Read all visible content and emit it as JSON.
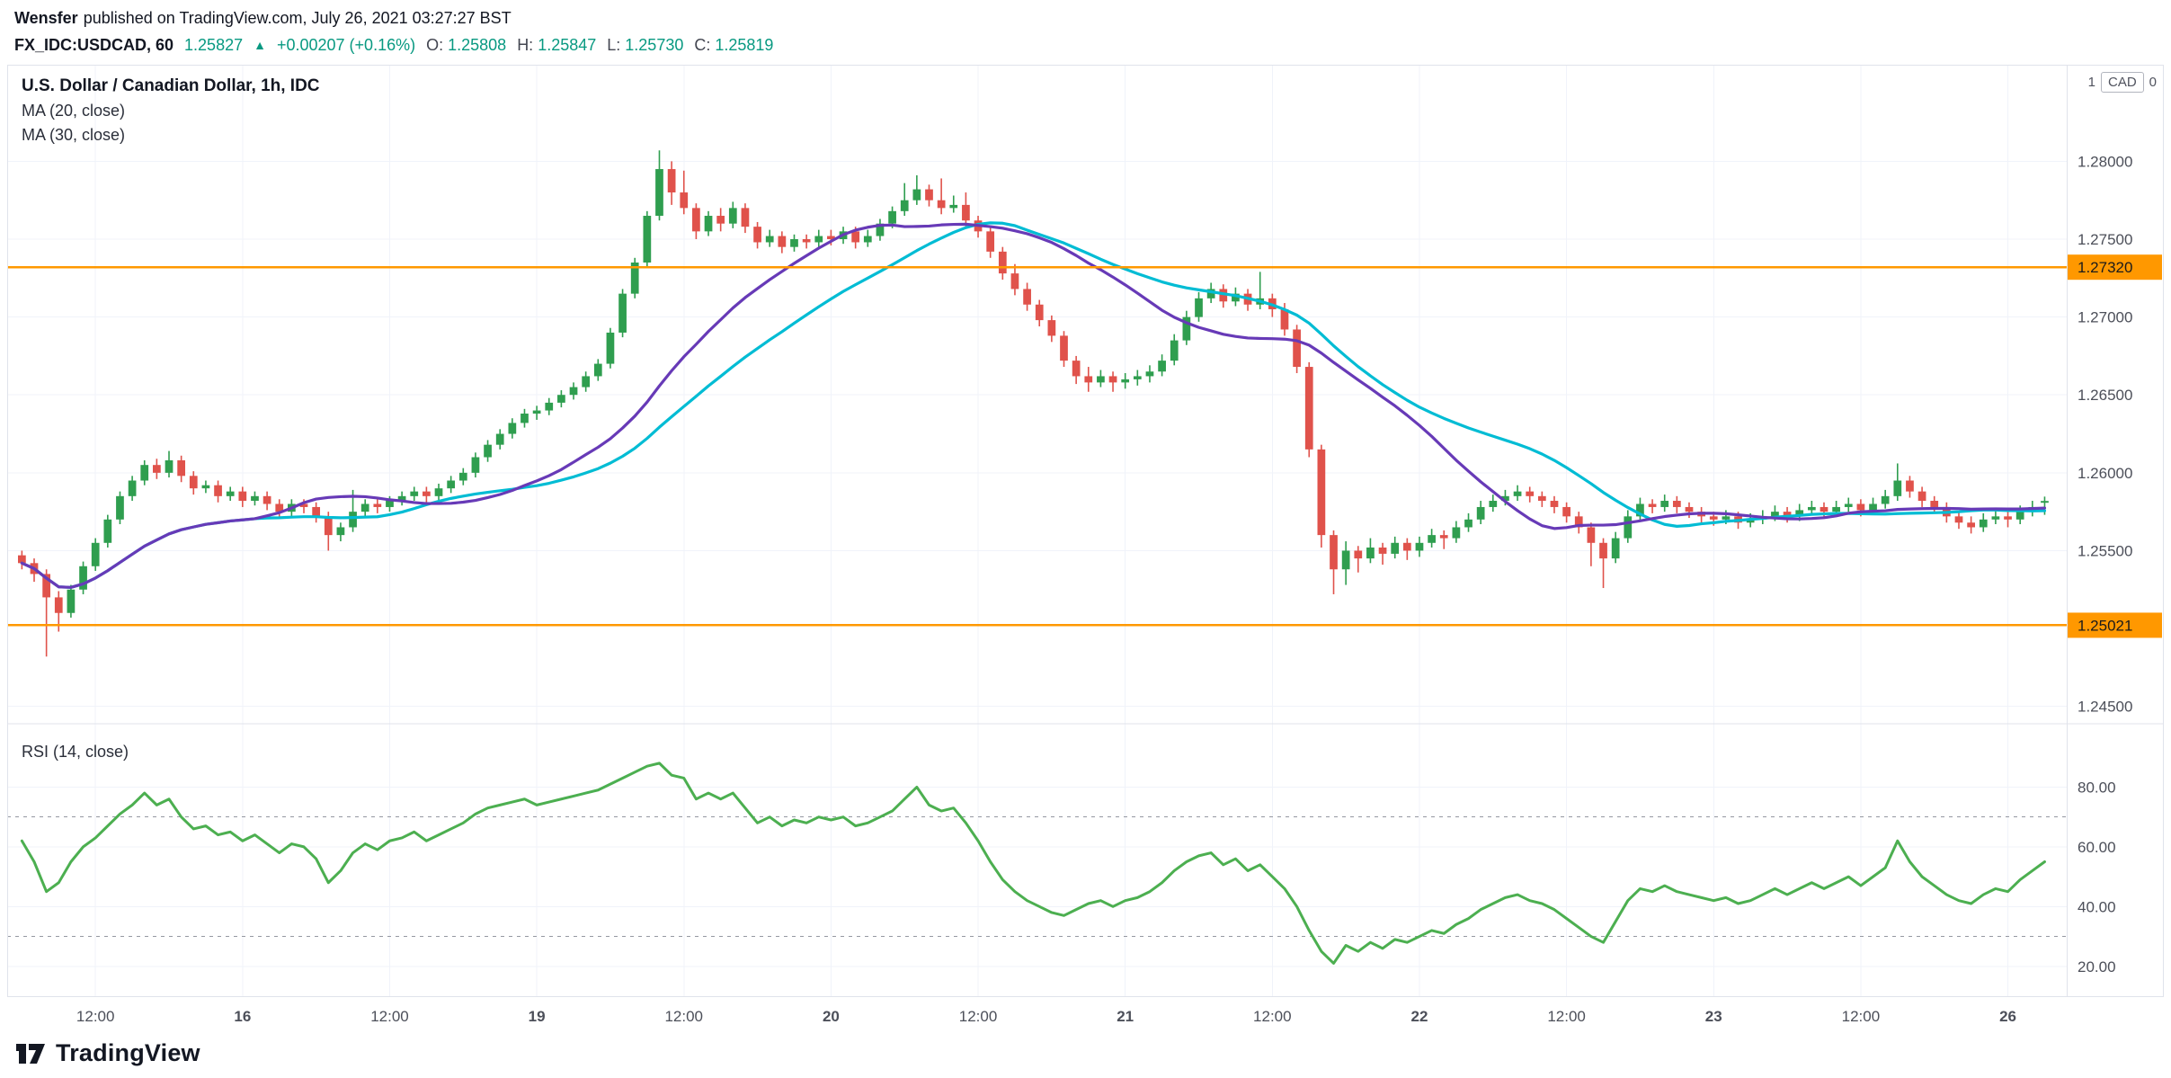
{
  "header": {
    "author": "Wensfer",
    "publish_info": "published on TradingView.com, July 26, 2021 03:27:27 BST",
    "symbol": "FX_IDC:USDCAD, 60",
    "price": "1.25827",
    "arrow": "▲",
    "change": "+0.00207 (+0.16%)",
    "o_label": "O:",
    "o": "1.25808",
    "h_label": "H:",
    "h": "1.25847",
    "l_label": "L:",
    "l": "1.25730",
    "c_label": "C:",
    "c": "1.25819"
  },
  "legend": {
    "symbol_title": "U.S. Dollar / Canadian Dollar, 1h, IDC",
    "ma20": "MA (20, close)",
    "ma30": "MA (30, close)",
    "rsi": "RSI (14, close)"
  },
  "scale": {
    "unit_prefix": "1",
    "unit": "CAD",
    "unit_suffix": "0"
  },
  "footer": {
    "brand": "TradingView"
  },
  "chart_data": {
    "type": "candlestick",
    "title": "U.S. Dollar / Canadian Dollar, 1h, IDC",
    "symbol": "FX_IDC:USDCAD",
    "interval": "60",
    "up_color": "#2f9e4f",
    "down_color": "#e0524b",
    "rsi_color": "#4caf50",
    "grid_color": "#f0f3fa",
    "border_color": "#e0e3eb",
    "axis_text_color": "#4c4f59",
    "price_ylim": [
      1.244,
      1.2862
    ],
    "price_ticks": [
      1.28,
      1.275,
      1.27,
      1.265,
      1.26,
      1.255,
      1.245
    ],
    "price_tick_labels": [
      "1.28000",
      "1.27500",
      "1.27000",
      "1.26500",
      "1.26000",
      "1.25500",
      "1.24500"
    ],
    "rsi_ylim": [
      10,
      100
    ],
    "rsi_ticks": [
      80,
      60,
      40,
      20
    ],
    "rsi_tick_labels": [
      "80.00",
      "60.00",
      "40.00",
      "20.00"
    ],
    "rsi_bands": [
      70,
      30
    ],
    "hlines": [
      {
        "value": 1.2732,
        "label": "1.27320",
        "color": "#ff9800"
      },
      {
        "value": 1.25021,
        "label": "1.25021",
        "color": "#ff9800"
      }
    ],
    "ma": [
      {
        "label": "MA (20, close)",
        "period": 20,
        "color": "#673ab7"
      },
      {
        "label": "MA (30, close)",
        "period": 30,
        "color": "#00bcd4"
      }
    ],
    "x_labels": [
      {
        "index": 6,
        "label": "12:00",
        "major": false
      },
      {
        "index": 18,
        "label": "16",
        "major": true
      },
      {
        "index": 30,
        "label": "12:00",
        "major": false
      },
      {
        "index": 42,
        "label": "19",
        "major": true
      },
      {
        "index": 54,
        "label": "12:00",
        "major": false
      },
      {
        "index": 66,
        "label": "20",
        "major": true
      },
      {
        "index": 78,
        "label": "12:00",
        "major": false
      },
      {
        "index": 90,
        "label": "21",
        "major": true
      },
      {
        "index": 102,
        "label": "12:00",
        "major": false
      },
      {
        "index": 114,
        "label": "22",
        "major": true
      },
      {
        "index": 126,
        "label": "12:00",
        "major": false
      },
      {
        "index": 138,
        "label": "23",
        "major": true
      },
      {
        "index": 150,
        "label": "12:00",
        "major": false
      },
      {
        "index": 162,
        "label": "26",
        "major": true
      }
    ],
    "candles": [
      [
        1.2547,
        1.255,
        1.2538,
        1.2542
      ],
      [
        1.2542,
        1.2545,
        1.253,
        1.2535
      ],
      [
        1.2535,
        1.2538,
        1.2482,
        1.252
      ],
      [
        1.252,
        1.2524,
        1.2498,
        1.251
      ],
      [
        1.251,
        1.2528,
        1.2507,
        1.2525
      ],
      [
        1.2525,
        1.2543,
        1.2522,
        1.254
      ],
      [
        1.254,
        1.2558,
        1.2537,
        1.2555
      ],
      [
        1.2555,
        1.2573,
        1.2552,
        1.257
      ],
      [
        1.257,
        1.2588,
        1.2567,
        1.2585
      ],
      [
        1.2585,
        1.2598,
        1.2582,
        1.2595
      ],
      [
        1.2595,
        1.2608,
        1.2592,
        1.2605
      ],
      [
        1.2605,
        1.2609,
        1.2596,
        1.26
      ],
      [
        1.26,
        1.2614,
        1.2597,
        1.2608
      ],
      [
        1.2608,
        1.2611,
        1.2594,
        1.2598
      ],
      [
        1.2598,
        1.2601,
        1.2586,
        1.259
      ],
      [
        1.259,
        1.2595,
        1.2587,
        1.2592
      ],
      [
        1.2592,
        1.2595,
        1.2581,
        1.2585
      ],
      [
        1.2585,
        1.2591,
        1.2582,
        1.2588
      ],
      [
        1.2588,
        1.2591,
        1.2578,
        1.2582
      ],
      [
        1.2582,
        1.2588,
        1.2579,
        1.2585
      ],
      [
        1.2585,
        1.2588,
        1.2576,
        1.258
      ],
      [
        1.258,
        1.2583,
        1.2571,
        1.2575
      ],
      [
        1.2575,
        1.2583,
        1.2572,
        1.258
      ],
      [
        1.258,
        1.2583,
        1.2574,
        1.2578
      ],
      [
        1.2578,
        1.2581,
        1.2568,
        1.2572
      ],
      [
        1.2572,
        1.2575,
        1.255,
        1.256
      ],
      [
        1.256,
        1.2568,
        1.2556,
        1.2565
      ],
      [
        1.2565,
        1.2589,
        1.2562,
        1.2575
      ],
      [
        1.2575,
        1.2583,
        1.2572,
        1.258
      ],
      [
        1.258,
        1.2583,
        1.2574,
        1.2578
      ],
      [
        1.2578,
        1.2585,
        1.2575,
        1.2582
      ],
      [
        1.2582,
        1.2588,
        1.2579,
        1.2585
      ],
      [
        1.2585,
        1.2591,
        1.2582,
        1.2588
      ],
      [
        1.2588,
        1.2591,
        1.2581,
        1.2585
      ],
      [
        1.2585,
        1.2593,
        1.2582,
        1.259
      ],
      [
        1.259,
        1.2598,
        1.2587,
        1.2595
      ],
      [
        1.2595,
        1.2603,
        1.2592,
        1.26
      ],
      [
        1.26,
        1.2613,
        1.2597,
        1.261
      ],
      [
        1.261,
        1.2621,
        1.2607,
        1.2618
      ],
      [
        1.2618,
        1.2628,
        1.2615,
        1.2625
      ],
      [
        1.2625,
        1.2635,
        1.2622,
        1.2632
      ],
      [
        1.2632,
        1.2641,
        1.2629,
        1.2638
      ],
      [
        1.2638,
        1.2643,
        1.2634,
        1.264
      ],
      [
        1.264,
        1.2648,
        1.2637,
        1.2645
      ],
      [
        1.2645,
        1.2653,
        1.2642,
        1.265
      ],
      [
        1.265,
        1.2658,
        1.2647,
        1.2655
      ],
      [
        1.2655,
        1.2665,
        1.2652,
        1.2662
      ],
      [
        1.2662,
        1.2673,
        1.2659,
        1.267
      ],
      [
        1.267,
        1.2693,
        1.2667,
        1.269
      ],
      [
        1.269,
        1.2718,
        1.2687,
        1.2715
      ],
      [
        1.2715,
        1.2738,
        1.2712,
        1.2735
      ],
      [
        1.2735,
        1.2768,
        1.2732,
        1.2765
      ],
      [
        1.2765,
        1.2807,
        1.2762,
        1.2795
      ],
      [
        1.2795,
        1.28,
        1.2772,
        1.278
      ],
      [
        1.278,
        1.2794,
        1.2766,
        1.277
      ],
      [
        1.277,
        1.2773,
        1.275,
        1.2755
      ],
      [
        1.2755,
        1.2768,
        1.2752,
        1.2765
      ],
      [
        1.2765,
        1.277,
        1.2755,
        1.276
      ],
      [
        1.276,
        1.2774,
        1.2757,
        1.277
      ],
      [
        1.277,
        1.2773,
        1.2754,
        1.2758
      ],
      [
        1.2758,
        1.2761,
        1.2744,
        1.2748
      ],
      [
        1.2748,
        1.2756,
        1.2745,
        1.2752
      ],
      [
        1.2752,
        1.2755,
        1.2741,
        1.2745
      ],
      [
        1.2745,
        1.2753,
        1.2742,
        1.275
      ],
      [
        1.275,
        1.2753,
        1.2744,
        1.2748
      ],
      [
        1.2748,
        1.2756,
        1.2745,
        1.2752
      ],
      [
        1.2752,
        1.2756,
        1.2746,
        1.275
      ],
      [
        1.275,
        1.2758,
        1.2747,
        1.2755
      ],
      [
        1.2755,
        1.2758,
        1.2744,
        1.2748
      ],
      [
        1.2748,
        1.2756,
        1.2745,
        1.2752
      ],
      [
        1.2752,
        1.2763,
        1.2749,
        1.276
      ],
      [
        1.276,
        1.2771,
        1.2757,
        1.2768
      ],
      [
        1.2768,
        1.2786,
        1.2765,
        1.2775
      ],
      [
        1.2775,
        1.2791,
        1.2772,
        1.2782
      ],
      [
        1.2782,
        1.2785,
        1.2771,
        1.2775
      ],
      [
        1.2775,
        1.2789,
        1.2766,
        1.277
      ],
      [
        1.277,
        1.2778,
        1.2767,
        1.2772
      ],
      [
        1.2772,
        1.278,
        1.2758,
        1.2762
      ],
      [
        1.2762,
        1.2765,
        1.2751,
        1.2755
      ],
      [
        1.2755,
        1.2758,
        1.2738,
        1.2742
      ],
      [
        1.2742,
        1.2745,
        1.2724,
        1.2728
      ],
      [
        1.2728,
        1.2734,
        1.2714,
        1.2718
      ],
      [
        1.2718,
        1.2722,
        1.2704,
        1.2708
      ],
      [
        1.2708,
        1.2711,
        1.2694,
        1.2698
      ],
      [
        1.2698,
        1.2701,
        1.2684,
        1.2688
      ],
      [
        1.2688,
        1.2691,
        1.2668,
        1.2672
      ],
      [
        1.2672,
        1.2675,
        1.2657,
        1.2662
      ],
      [
        1.2662,
        1.2668,
        1.2652,
        1.2658
      ],
      [
        1.2658,
        1.2666,
        1.2655,
        1.2662
      ],
      [
        1.2662,
        1.2665,
        1.2652,
        1.2658
      ],
      [
        1.2658,
        1.2664,
        1.2654,
        1.266
      ],
      [
        1.266,
        1.2666,
        1.2656,
        1.2662
      ],
      [
        1.2662,
        1.2669,
        1.2658,
        1.2665
      ],
      [
        1.2665,
        1.2676,
        1.2662,
        1.2672
      ],
      [
        1.2672,
        1.2689,
        1.2669,
        1.2685
      ],
      [
        1.2685,
        1.2704,
        1.2682,
        1.27
      ],
      [
        1.27,
        1.2716,
        1.2697,
        1.2712
      ],
      [
        1.2712,
        1.2722,
        1.2709,
        1.2718
      ],
      [
        1.2718,
        1.2721,
        1.2706,
        1.271
      ],
      [
        1.271,
        1.2719,
        1.2707,
        1.2715
      ],
      [
        1.2715,
        1.2718,
        1.2704,
        1.2708
      ],
      [
        1.2708,
        1.2729,
        1.2705,
        1.2712
      ],
      [
        1.2712,
        1.2715,
        1.27,
        1.2705
      ],
      [
        1.2705,
        1.2709,
        1.2688,
        1.2692
      ],
      [
        1.2692,
        1.2695,
        1.2664,
        1.2668
      ],
      [
        1.2668,
        1.2671,
        1.261,
        1.2615
      ],
      [
        1.2615,
        1.2618,
        1.2552,
        1.256
      ],
      [
        1.256,
        1.2563,
        1.2522,
        1.2538
      ],
      [
        1.2538,
        1.2556,
        1.2528,
        1.255
      ],
      [
        1.255,
        1.2553,
        1.2536,
        1.2545
      ],
      [
        1.2545,
        1.2558,
        1.2542,
        1.2552
      ],
      [
        1.2552,
        1.2555,
        1.2541,
        1.2548
      ],
      [
        1.2548,
        1.2559,
        1.2545,
        1.2555
      ],
      [
        1.2555,
        1.2558,
        1.2544,
        1.255
      ],
      [
        1.255,
        1.2559,
        1.2546,
        1.2555
      ],
      [
        1.2555,
        1.2564,
        1.2552,
        1.256
      ],
      [
        1.256,
        1.2563,
        1.2551,
        1.2558
      ],
      [
        1.2558,
        1.2569,
        1.2555,
        1.2565
      ],
      [
        1.2565,
        1.2574,
        1.2562,
        1.257
      ],
      [
        1.257,
        1.2582,
        1.2567,
        1.2578
      ],
      [
        1.2578,
        1.2586,
        1.2575,
        1.2582
      ],
      [
        1.2582,
        1.2589,
        1.2579,
        1.2585
      ],
      [
        1.2585,
        1.2592,
        1.2582,
        1.2588
      ],
      [
        1.2588,
        1.2591,
        1.2581,
        1.2585
      ],
      [
        1.2585,
        1.2588,
        1.2578,
        1.2582
      ],
      [
        1.2582,
        1.2585,
        1.2574,
        1.2578
      ],
      [
        1.2578,
        1.2581,
        1.2568,
        1.2572
      ],
      [
        1.2572,
        1.2575,
        1.2561,
        1.2565
      ],
      [
        1.2565,
        1.2568,
        1.254,
        1.2555
      ],
      [
        1.2555,
        1.2558,
        1.2526,
        1.2545
      ],
      [
        1.2545,
        1.2562,
        1.2542,
        1.2558
      ],
      [
        1.2558,
        1.2576,
        1.2555,
        1.2572
      ],
      [
        1.2572,
        1.2584,
        1.2569,
        1.258
      ],
      [
        1.258,
        1.2583,
        1.2574,
        1.2578
      ],
      [
        1.2578,
        1.2586,
        1.2575,
        1.2582
      ],
      [
        1.2582,
        1.2585,
        1.2574,
        1.2578
      ],
      [
        1.2578,
        1.2581,
        1.2571,
        1.2575
      ],
      [
        1.2575,
        1.2578,
        1.2568,
        1.2572
      ],
      [
        1.2572,
        1.2575,
        1.2566,
        1.257
      ],
      [
        1.257,
        1.2576,
        1.2567,
        1.2572
      ],
      [
        1.2572,
        1.2575,
        1.2564,
        1.2568
      ],
      [
        1.2568,
        1.2574,
        1.2565,
        1.257
      ],
      [
        1.257,
        1.2576,
        1.2567,
        1.2572
      ],
      [
        1.2572,
        1.2579,
        1.2569,
        1.2575
      ],
      [
        1.2575,
        1.2578,
        1.2568,
        1.2572
      ],
      [
        1.2572,
        1.258,
        1.2569,
        1.2576
      ],
      [
        1.2576,
        1.2582,
        1.2573,
        1.2578
      ],
      [
        1.2578,
        1.2581,
        1.2571,
        1.2575
      ],
      [
        1.2575,
        1.2582,
        1.2572,
        1.2578
      ],
      [
        1.2578,
        1.2584,
        1.2575,
        1.258
      ],
      [
        1.258,
        1.2583,
        1.2572,
        1.2576
      ],
      [
        1.2576,
        1.2584,
        1.2573,
        1.258
      ],
      [
        1.258,
        1.2589,
        1.2577,
        1.2585
      ],
      [
        1.2585,
        1.2606,
        1.2582,
        1.2595
      ],
      [
        1.2595,
        1.2598,
        1.2584,
        1.2588
      ],
      [
        1.2588,
        1.2591,
        1.2578,
        1.2582
      ],
      [
        1.2582,
        1.2585,
        1.2574,
        1.2578
      ],
      [
        1.2578,
        1.2581,
        1.2568,
        1.2572
      ],
      [
        1.2572,
        1.2575,
        1.2564,
        1.2568
      ],
      [
        1.2568,
        1.2572,
        1.2561,
        1.2565
      ],
      [
        1.2565,
        1.2574,
        1.2562,
        1.257
      ],
      [
        1.257,
        1.2576,
        1.2567,
        1.2572
      ],
      [
        1.2572,
        1.2575,
        1.2565,
        1.257
      ],
      [
        1.257,
        1.2579,
        1.2567,
        1.2575
      ],
      [
        1.2575,
        1.2582,
        1.2572,
        1.2578
      ],
      [
        1.25808,
        1.25847,
        1.2573,
        1.25819
      ]
    ],
    "rsi_values": [
      62,
      55,
      45,
      48,
      55,
      60,
      63,
      67,
      71,
      74,
      78,
      74,
      76,
      70,
      66,
      67,
      64,
      65,
      62,
      64,
      61,
      58,
      61,
      60,
      56,
      48,
      52,
      58,
      61,
      59,
      62,
      63,
      65,
      62,
      64,
      66,
      68,
      71,
      73,
      74,
      75,
      76,
      74,
      75,
      76,
      77,
      78,
      79,
      81,
      83,
      85,
      87,
      88,
      84,
      83,
      76,
      78,
      76,
      78,
      73,
      68,
      70,
      67,
      69,
      68,
      70,
      69,
      70,
      67,
      68,
      70,
      72,
      76,
      80,
      74,
      72,
      73,
      68,
      62,
      55,
      49,
      45,
      42,
      40,
      38,
      37,
      39,
      41,
      42,
      40,
      42,
      43,
      45,
      48,
      52,
      55,
      57,
      58,
      54,
      56,
      52,
      54,
      50,
      46,
      40,
      32,
      25,
      21,
      27,
      25,
      28,
      26,
      29,
      28,
      30,
      32,
      31,
      34,
      36,
      39,
      41,
      43,
      44,
      42,
      41,
      39,
      36,
      33,
      30,
      28,
      35,
      42,
      46,
      45,
      47,
      45,
      44,
      43,
      42,
      43,
      41,
      42,
      44,
      46,
      44,
      46,
      48,
      46,
      48,
      50,
      47,
      50,
      53,
      62,
      55,
      50,
      47,
      44,
      42,
      41,
      44,
      46,
      45,
      49,
      52,
      55
    ]
  }
}
